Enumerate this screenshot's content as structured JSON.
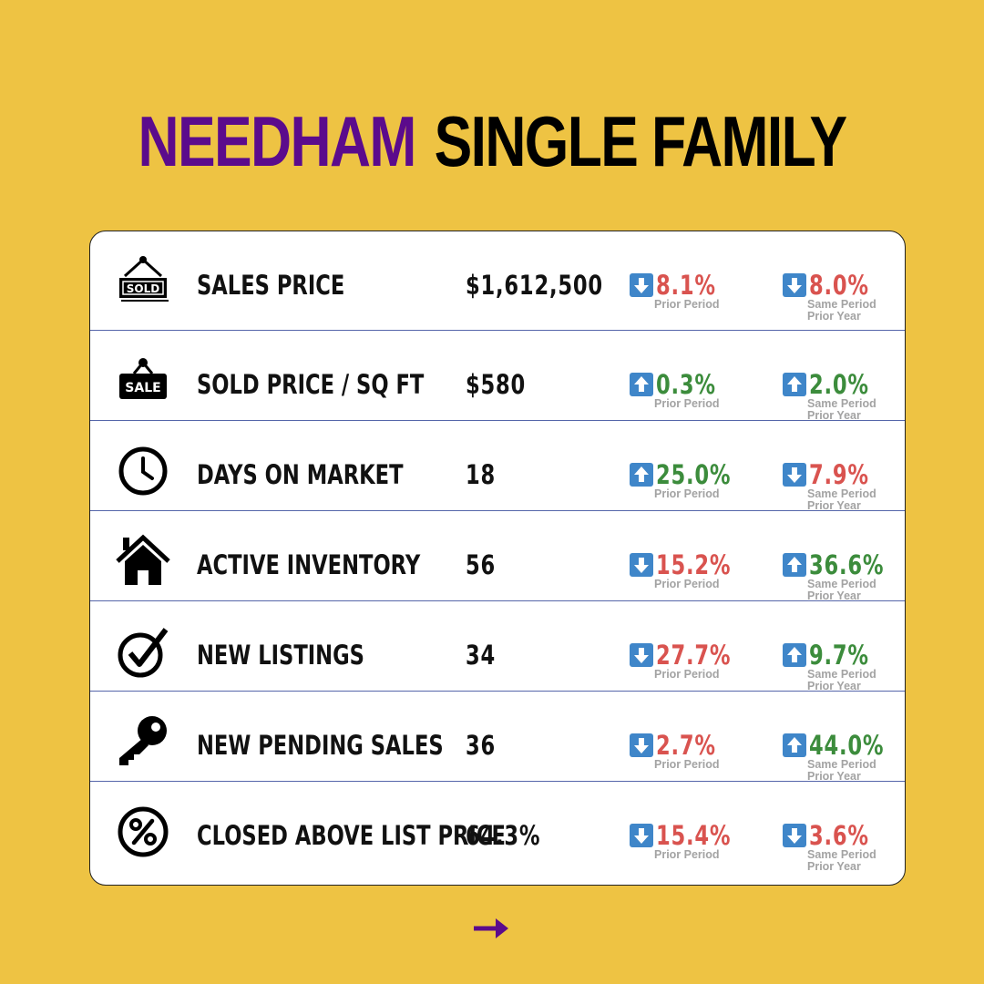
{
  "title": {
    "city": "NEEDHAM",
    "type": "SINGLE FAMILY"
  },
  "colors": {
    "background": "#EEC343",
    "city": "#5B0B8C",
    "down": "#D9534F",
    "up": "#3C8C3C",
    "arrow_box": "#3F86C9"
  },
  "rows": [
    {
      "icon": "sold-sign-icon",
      "label": "SALES PRICE",
      "value": "$1,612,500",
      "prior": {
        "dir": "down",
        "pct": "8.1%",
        "sub": "Prior Period"
      },
      "year": {
        "dir": "down",
        "pct": "8.0%",
        "sub1": "Same Period",
        "sub2": "Prior Year"
      }
    },
    {
      "icon": "sale-sign-icon",
      "label": "SOLD PRICE / SQ FT",
      "value": "$580",
      "prior": {
        "dir": "up",
        "pct": "0.3%",
        "sub": "Prior Period"
      },
      "year": {
        "dir": "up",
        "pct": "2.0%",
        "sub1": "Same Period",
        "sub2": "Prior Year"
      }
    },
    {
      "icon": "clock-icon",
      "label": "DAYS ON MARKET",
      "value": "18",
      "prior": {
        "dir": "up",
        "pct": "25.0%",
        "sub": "Prior Period"
      },
      "year": {
        "dir": "down",
        "pct": "7.9%",
        "sub1": "Same Period",
        "sub2": "Prior Year"
      }
    },
    {
      "icon": "house-icon",
      "label": "ACTIVE INVENTORY",
      "value": "56",
      "prior": {
        "dir": "down",
        "pct": "15.2%",
        "sub": "Prior Period"
      },
      "year": {
        "dir": "up",
        "pct": "36.6%",
        "sub1": "Same Period",
        "sub2": "Prior Year"
      }
    },
    {
      "icon": "checkmark-icon",
      "label": "NEW LISTINGS",
      "value": "34",
      "prior": {
        "dir": "down",
        "pct": "27.7%",
        "sub": "Prior Period"
      },
      "year": {
        "dir": "up",
        "pct": "9.7%",
        "sub1": "Same Period",
        "sub2": "Prior Year"
      }
    },
    {
      "icon": "key-icon",
      "label": "NEW PENDING SALES",
      "value": "36",
      "prior": {
        "dir": "down",
        "pct": "2.7%",
        "sub": "Prior Period"
      },
      "year": {
        "dir": "up",
        "pct": "44.0%",
        "sub1": "Same Period",
        "sub2": "Prior Year"
      }
    },
    {
      "icon": "percent-icon",
      "label": "CLOSED ABOVE LIST PRICE",
      "value": "64.3%",
      "prior": {
        "dir": "down",
        "pct": "15.4%",
        "sub": "Prior Period"
      },
      "year": {
        "dir": "down",
        "pct": "3.6%",
        "sub1": "Same Period",
        "sub2": "Prior Year"
      }
    }
  ],
  "nav": {
    "icon": "right-arrow-icon"
  }
}
